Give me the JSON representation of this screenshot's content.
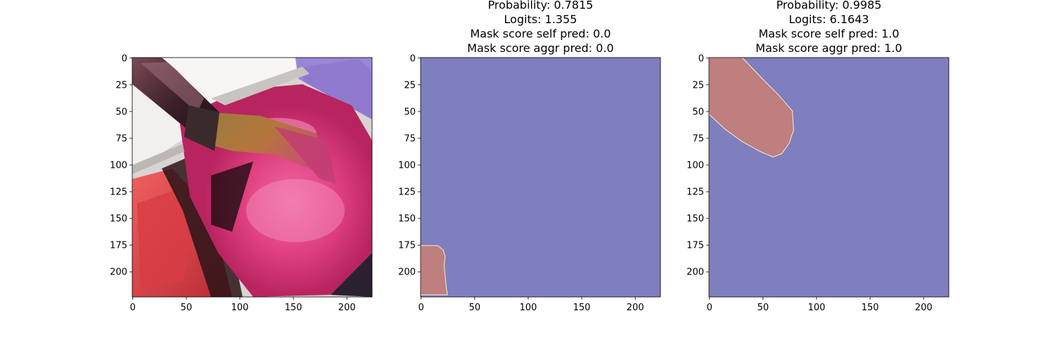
{
  "chart_data": [
    {
      "type": "image",
      "title_lines": [],
      "image": "photo-paint-brush-in-pink-watercolor",
      "xlim": [
        0,
        224
      ],
      "ylim": [
        224,
        0
      ],
      "xticks": [
        0,
        50,
        100,
        150,
        200
      ],
      "yticks": [
        0,
        25,
        50,
        75,
        100,
        125,
        150,
        175,
        200
      ]
    },
    {
      "type": "heatmap",
      "title_lines": [
        "Probability: 0.7815",
        "Logits: 1.355",
        "Mask score self pred: 0.0",
        "Mask score aggr pred: 0.0"
      ],
      "xlim": [
        0,
        224
      ],
      "ylim": [
        224,
        0
      ],
      "xticks": [
        0,
        50,
        100,
        150,
        200
      ],
      "yticks": [
        0,
        25,
        50,
        75,
        100,
        125,
        150,
        175,
        200
      ],
      "background_color": "#7f7fbf",
      "region_color": "#bf7f7f",
      "region_polygon": [
        [
          0,
          176
        ],
        [
          16,
          176
        ],
        [
          21,
          180
        ],
        [
          23,
          186
        ],
        [
          22,
          195
        ],
        [
          23,
          205
        ],
        [
          24,
          215
        ],
        [
          25,
          222
        ],
        [
          0,
          222
        ]
      ]
    },
    {
      "type": "heatmap",
      "title_lines": [
        "Probability: 0.9985",
        "Logits: 6.1643",
        "Mask score self pred: 1.0",
        "Mask score aggr pred: 1.0"
      ],
      "xlim": [
        0,
        224
      ],
      "ylim": [
        224,
        0
      ],
      "xticks": [
        0,
        50,
        100,
        150,
        200
      ],
      "yticks": [
        0,
        25,
        50,
        75,
        100,
        125,
        150,
        175,
        200
      ],
      "background_color": "#7f7fbf",
      "region_color": "#bf7f7f",
      "region_polygon": [
        [
          0,
          0
        ],
        [
          31,
          0
        ],
        [
          50,
          20
        ],
        [
          65,
          35
        ],
        [
          78,
          50
        ],
        [
          79,
          68
        ],
        [
          75,
          80
        ],
        [
          68,
          90
        ],
        [
          60,
          93
        ],
        [
          48,
          88
        ],
        [
          30,
          78
        ],
        [
          15,
          67
        ],
        [
          0,
          53
        ]
      ]
    }
  ]
}
